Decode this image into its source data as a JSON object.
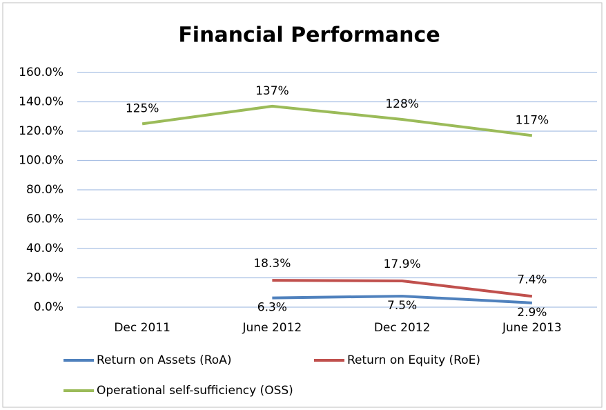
{
  "chart_data": {
    "type": "line",
    "title": "Financial Performance",
    "categories": [
      "Dec 2011",
      "June 2012",
      "Dec 2012",
      "June 2013"
    ],
    "series": [
      {
        "name": "Return on Assets (RoA)",
        "color": "#4f81bd",
        "values": [
          null,
          6.3,
          7.5,
          2.9
        ],
        "value_labels": [
          null,
          "6.3%",
          "7.5%",
          "2.9%"
        ]
      },
      {
        "name": "Return on Equity (RoE)",
        "color": "#c0504d",
        "values": [
          null,
          18.3,
          17.9,
          7.4
        ],
        "value_labels": [
          null,
          "18.3%",
          "17.9%",
          "7.4%"
        ]
      },
      {
        "name": "Operational self-sufficiency (OSS)",
        "color": "#9bbb59",
        "values": [
          125,
          137,
          128,
          117
        ],
        "value_labels": [
          "125%",
          "137%",
          "128%",
          "117%"
        ]
      }
    ],
    "ylim": [
      0,
      160
    ],
    "yticks": [
      {
        "value": 0,
        "label": "0.0%"
      },
      {
        "value": 20,
        "label": "20.0%"
      },
      {
        "value": 40,
        "label": "40.0%"
      },
      {
        "value": 60,
        "label": "60.0%"
      },
      {
        "value": 80,
        "label": "80.0%"
      },
      {
        "value": 100,
        "label": "100.0%"
      },
      {
        "value": 120,
        "label": "120.0%"
      },
      {
        "value": 140,
        "label": "140.0%"
      },
      {
        "value": 160,
        "label": "160.0%"
      }
    ],
    "grid": true,
    "legend": "bottom"
  }
}
